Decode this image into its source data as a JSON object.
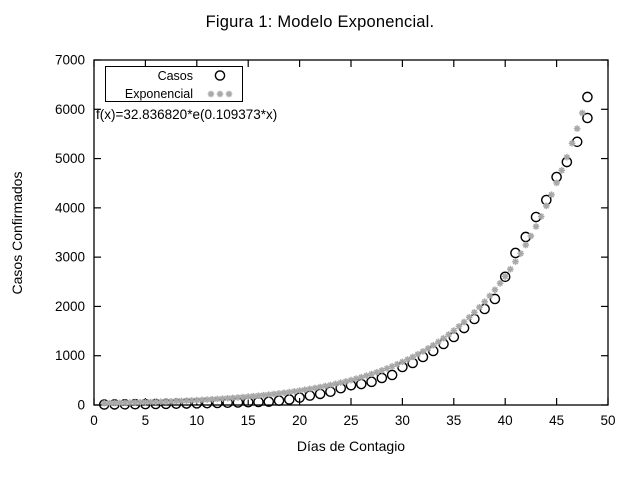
{
  "chart_data": {
    "type": "scatter",
    "title": "Figura 1: Modelo Exponencial.",
    "xlabel": "Días de Contagio",
    "ylabel": "Casos Confirmados",
    "annotation": "f(x)=32.836820*e(0.109373*x)",
    "xlim": [
      0,
      50
    ],
    "ylim": [
      0,
      7000
    ],
    "x_ticks": [
      0,
      5,
      10,
      15,
      20,
      25,
      30,
      35,
      40,
      45,
      50
    ],
    "y_ticks": [
      0,
      1000,
      2000,
      3000,
      4000,
      5000,
      6000,
      7000
    ],
    "grid": false,
    "legend_position": "top-left-inside",
    "colors": {
      "casos": "#000000",
      "exponencial": "#a8a8a8",
      "background": "#ffffff"
    },
    "series": [
      {
        "name": "Casos",
        "marker": "open-circle",
        "color": "#000000",
        "points": [
          [
            1,
            10
          ],
          [
            2,
            12
          ],
          [
            3,
            14
          ],
          [
            4,
            16
          ],
          [
            5,
            18
          ],
          [
            6,
            21
          ],
          [
            7,
            24
          ],
          [
            8,
            27
          ],
          [
            9,
            30
          ],
          [
            10,
            33
          ],
          [
            11,
            37
          ],
          [
            12,
            41
          ],
          [
            13,
            46
          ],
          [
            14,
            51
          ],
          [
            15,
            56
          ],
          [
            16,
            61
          ],
          [
            17,
            66
          ],
          [
            18,
            88
          ],
          [
            19,
            112
          ],
          [
            20,
            150
          ],
          [
            21,
            190
          ],
          [
            22,
            225
          ],
          [
            23,
            270
          ],
          [
            24,
            340
          ],
          [
            25,
            400
          ],
          [
            26,
            425
          ],
          [
            27,
            470
          ],
          [
            28,
            548
          ],
          [
            29,
            609
          ],
          [
            30,
            771
          ],
          [
            31,
            852
          ],
          [
            32,
            974
          ],
          [
            33,
            1096
          ],
          [
            34,
            1238
          ],
          [
            35,
            1380
          ],
          [
            36,
            1562
          ],
          [
            37,
            1745
          ],
          [
            38,
            1948
          ],
          [
            39,
            2151
          ],
          [
            40,
            2601
          ],
          [
            41,
            3085
          ],
          [
            42,
            3409
          ],
          [
            43,
            3814
          ],
          [
            44,
            4159
          ],
          [
            45,
            4626
          ],
          [
            46,
            4930
          ],
          [
            47,
            5340
          ],
          [
            48,
            5823
          ],
          [
            48,
            6250
          ]
        ]
      },
      {
        "name": "Exponencial",
        "marker": "asterisk",
        "color": "#a8a8a8",
        "formula": "f(x)=32.836820*e(0.109373*x)",
        "a": 32.83682,
        "b": 0.109373,
        "x_start": 1.0,
        "x_end": 47.5,
        "x_step": 0.5
      }
    ]
  }
}
